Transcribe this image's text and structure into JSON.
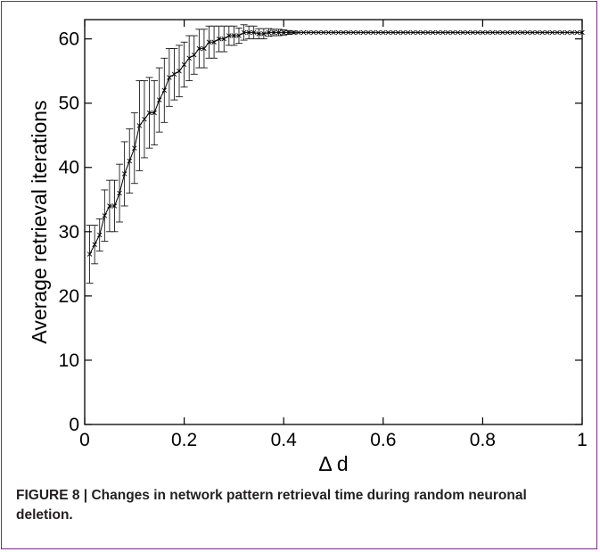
{
  "caption": {
    "label": "FIGURE 8 |",
    "text": "Changes in network pattern retrieval time during random neuronal deletion."
  },
  "chart_data": {
    "type": "line",
    "title": "",
    "xlabel": "Δ d",
    "ylabel": "Average retrieval iterations",
    "xlim": [
      0,
      1
    ],
    "ylim": [
      0,
      63
    ],
    "xticks": [
      0,
      0.2,
      0.4,
      0.6,
      0.8,
      1
    ],
    "xtick_labels": [
      "0",
      "0.2",
      "0.4",
      "0.6",
      "0.8",
      "1"
    ],
    "yticks": [
      0,
      10,
      20,
      30,
      40,
      50,
      60
    ],
    "ytick_labels": [
      "0",
      "10",
      "20",
      "30",
      "40",
      "50",
      "60"
    ],
    "grid": false,
    "line_color": "#000000",
    "series": [
      {
        "x": [
          0.01,
          0.02,
          0.03,
          0.04,
          0.05,
          0.06,
          0.07,
          0.08,
          0.09,
          0.1,
          0.11,
          0.12,
          0.13,
          0.14,
          0.15,
          0.16,
          0.17,
          0.18,
          0.19,
          0.2,
          0.21,
          0.22,
          0.23,
          0.24,
          0.25,
          0.26,
          0.27,
          0.28,
          0.29,
          0.3,
          0.31,
          0.32,
          0.33,
          0.34,
          0.35,
          0.36,
          0.37,
          0.38,
          0.39,
          0.4,
          0.41,
          0.42,
          0.43,
          0.44,
          0.45,
          0.46,
          0.47,
          0.48,
          0.49,
          0.5,
          0.51,
          0.52,
          0.53,
          0.54,
          0.55,
          0.56,
          0.57,
          0.58,
          0.59,
          0.6,
          0.61,
          0.62,
          0.63,
          0.64,
          0.65,
          0.66,
          0.67,
          0.68,
          0.69,
          0.7,
          0.71,
          0.72,
          0.73,
          0.74,
          0.75,
          0.76,
          0.77,
          0.78,
          0.79,
          0.8,
          0.81,
          0.82,
          0.83,
          0.84,
          0.85,
          0.86,
          0.87,
          0.88,
          0.89,
          0.9,
          0.91,
          0.92,
          0.93,
          0.94,
          0.95,
          0.96,
          0.97,
          0.98,
          0.99,
          1.0
        ],
        "y": [
          26.5,
          28,
          29.5,
          32.5,
          34,
          34,
          36,
          39,
          41,
          43,
          46.5,
          47.5,
          48.5,
          48.5,
          50.5,
          52,
          54,
          54.5,
          55,
          56,
          57,
          57.5,
          58.5,
          58.5,
          59.5,
          59.5,
          60,
          60,
          60.5,
          60.5,
          60.5,
          61,
          61,
          61,
          60.8,
          60.8,
          61,
          61,
          61,
          61,
          61,
          61,
          61,
          61,
          61,
          61,
          61,
          61,
          61,
          61,
          61,
          61,
          61,
          61,
          61,
          61,
          61,
          61,
          61,
          61,
          61,
          61,
          61,
          61,
          61,
          61,
          61,
          61,
          61,
          61,
          61,
          61,
          61,
          61,
          61,
          61,
          61,
          61,
          61,
          61,
          61,
          61,
          61,
          61,
          61,
          61,
          61,
          61,
          61,
          61,
          61,
          61,
          61,
          61,
          61,
          61,
          61,
          61,
          61,
          61
        ],
        "err": [
          4.5,
          3,
          2.5,
          4,
          4,
          4,
          4.5,
          5,
          5,
          5.5,
          7,
          6,
          5.5,
          5,
          5,
          5,
          4.5,
          4,
          4,
          3.5,
          3.5,
          3,
          3,
          3,
          2.5,
          2.5,
          2,
          2,
          1.5,
          1.5,
          1.2,
          1.2,
          1,
          1,
          0.8,
          0.8,
          0.6,
          0.5,
          0.5,
          0.4,
          0.3,
          0.2,
          0,
          0,
          0,
          0,
          0,
          0,
          0,
          0,
          0,
          0,
          0,
          0,
          0,
          0,
          0,
          0,
          0,
          0,
          0,
          0,
          0,
          0,
          0,
          0,
          0,
          0,
          0,
          0,
          0,
          0,
          0,
          0,
          0,
          0,
          0,
          0,
          0,
          0,
          0,
          0,
          0,
          0,
          0,
          0,
          0,
          0,
          0,
          0,
          0,
          0,
          0,
          0,
          0,
          0,
          0,
          0,
          0,
          0
        ]
      }
    ]
  }
}
